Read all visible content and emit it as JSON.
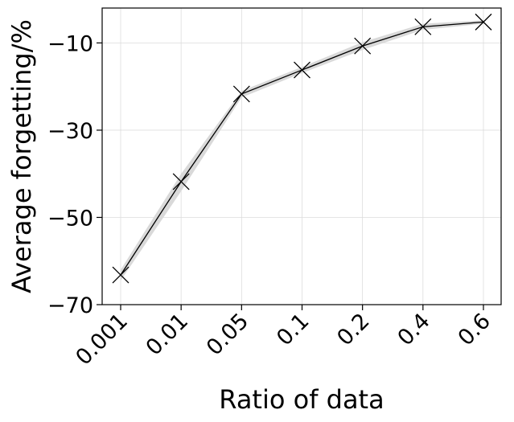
{
  "chart_data": {
    "type": "line",
    "title": "",
    "xlabel": "Ratio of data",
    "ylabel": "Average forgetting/%",
    "categories": [
      "0.001",
      "0.01",
      "0.05",
      "0.1",
      "0.2",
      "0.4",
      "0.6"
    ],
    "series": [
      {
        "values": [
          -63.2,
          -41.8,
          -21.7,
          -16.2,
          -10.7,
          -6.3,
          -5.2
        ],
        "band_lower": [
          -64.5,
          -44.0,
          -22.5,
          -16.9,
          -11.6,
          -7.0,
          -5.6
        ],
        "band_upper": [
          -62.0,
          -40.0,
          -21.0,
          -15.5,
          -9.8,
          -5.6,
          -4.8
        ],
        "color": "#000000",
        "band_color": "#d9d9d9",
        "marker": "x"
      }
    ],
    "yticks": [
      -70,
      -50,
      -30,
      -10
    ],
    "yticks_text": [
      "−70",
      "−50",
      "−30",
      "−10"
    ],
    "ylim": [
      -70,
      -2
    ],
    "grid": true,
    "legend": "none"
  }
}
